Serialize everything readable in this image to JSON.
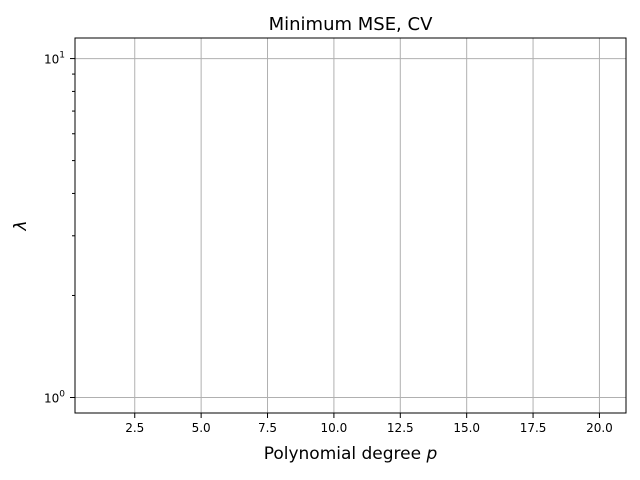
{
  "chart_data": {
    "type": "line",
    "title": "Minimum MSE, CV",
    "xlabel_text": "Polynomial degree ",
    "xlabel_var": "p",
    "ylabel": "λ",
    "x_ticks": [
      2.5,
      5.0,
      7.5,
      10.0,
      12.5,
      15.0,
      17.5,
      20.0
    ],
    "x_tick_labels": [
      "2.5",
      "5.0",
      "7.5",
      "10.0",
      "12.5",
      "15.0",
      "17.5",
      "20.0"
    ],
    "y_scale": "log",
    "y_major_ticks": [
      1,
      10
    ],
    "y_major_tick_labels": [
      {
        "base": "10",
        "exp": "0"
      },
      {
        "base": "10",
        "exp": "1"
      }
    ],
    "y_minor_ticks": [
      2,
      3,
      4,
      5,
      6,
      7,
      8,
      9
    ],
    "xlim": [
      0.25,
      21.0
    ],
    "ylim": [
      0.9,
      11.5
    ],
    "grid": true,
    "series": [],
    "colors": {
      "grid": "#b0b0b0",
      "axis": "#000000",
      "background": "#ffffff"
    }
  }
}
